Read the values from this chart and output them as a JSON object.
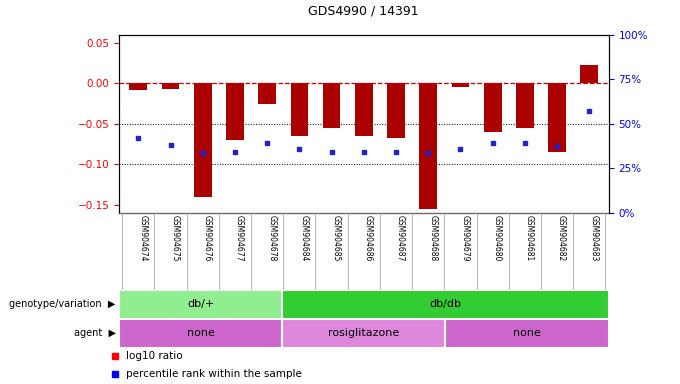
{
  "title": "GDS4990 / 14391",
  "samples": [
    "GSM904674",
    "GSM904675",
    "GSM904676",
    "GSM904677",
    "GSM904678",
    "GSM904684",
    "GSM904685",
    "GSM904686",
    "GSM904687",
    "GSM904688",
    "GSM904679",
    "GSM904680",
    "GSM904681",
    "GSM904682",
    "GSM904683"
  ],
  "log10_ratio": [
    -0.008,
    -0.007,
    -0.14,
    -0.07,
    -0.025,
    -0.065,
    -0.055,
    -0.065,
    -0.068,
    -0.155,
    -0.005,
    -0.06,
    -0.055,
    -0.085,
    0.022
  ],
  "percentile": [
    42,
    38,
    33.5,
    34,
    39,
    36,
    34.5,
    34.5,
    34.5,
    33.5,
    36,
    39,
    39,
    37.5,
    57
  ],
  "ylim_left": [
    -0.16,
    0.06
  ],
  "ylim_right": [
    0,
    100
  ],
  "yticks_left": [
    -0.15,
    -0.1,
    -0.05,
    0,
    0.05
  ],
  "yticks_right": [
    0,
    25,
    50,
    75,
    100
  ],
  "genotype_groups": [
    {
      "label": "db/+",
      "start": 0,
      "end": 5,
      "color": "#90EE90"
    },
    {
      "label": "db/db",
      "start": 5,
      "end": 15,
      "color": "#32CD32"
    }
  ],
  "agent_groups": [
    {
      "label": "none",
      "start": 0,
      "end": 5,
      "color": "#CC66CC"
    },
    {
      "label": "rosiglitazone",
      "start": 5,
      "end": 10,
      "color": "#DD88DD"
    },
    {
      "label": "none",
      "start": 10,
      "end": 15,
      "color": "#CC66CC"
    }
  ],
  "bar_color": "#AA0000",
  "dot_color": "#2222CC",
  "hline_color": "#CC0000",
  "bar_width": 0.55
}
